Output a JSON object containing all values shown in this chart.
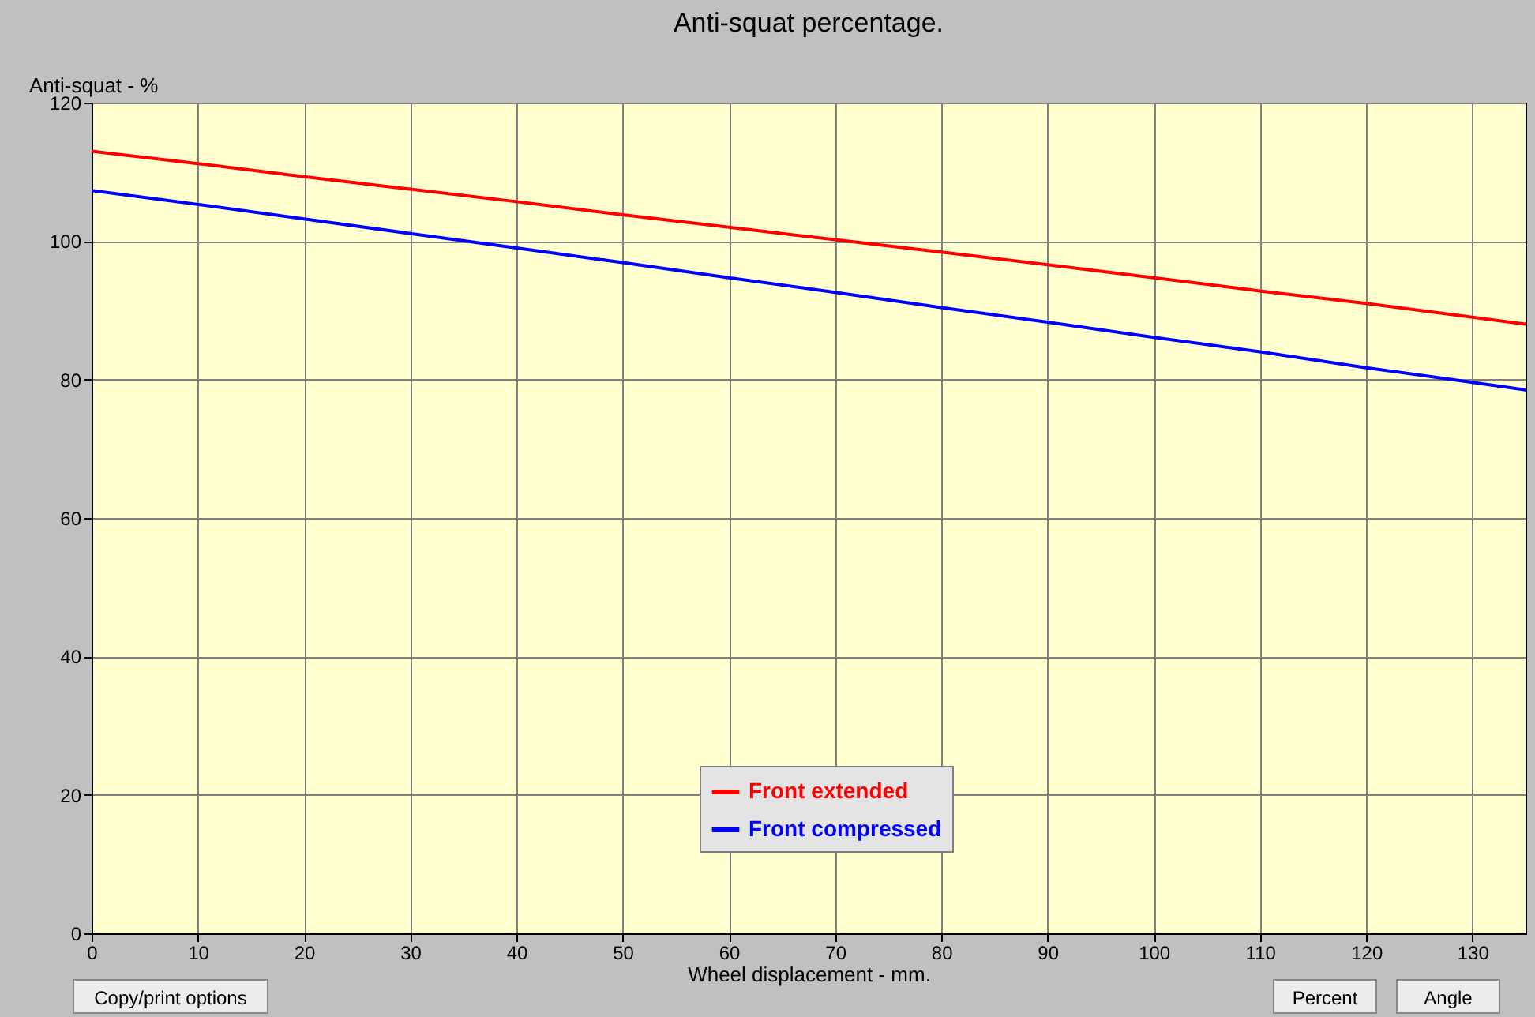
{
  "chart_data": {
    "type": "line",
    "title": "Anti-squat percentage.",
    "xlabel": "Wheel displacement - mm.",
    "ylabel": "Anti-squat - %",
    "x": [
      0,
      10,
      20,
      30,
      40,
      50,
      60,
      70,
      80,
      90,
      100,
      110,
      120,
      130,
      135
    ],
    "series": [
      {
        "name": "Front extended",
        "color": "#ff0000",
        "values": [
          113,
          111.2,
          109.3,
          107.5,
          105.7,
          103.8,
          102,
          100.2,
          98.4,
          96.6,
          94.7,
          92.8,
          91,
          89,
          88
        ]
      },
      {
        "name": "Front compressed",
        "color": "#0000ff",
        "values": [
          107.3,
          105.3,
          103.2,
          101.1,
          99,
          96.9,
          94.7,
          92.6,
          90.4,
          88.3,
          86.1,
          84,
          81.7,
          79.6,
          78.5
        ]
      }
    ],
    "xlim": [
      0,
      135
    ],
    "xticks": [
      0,
      10,
      20,
      30,
      40,
      50,
      60,
      70,
      80,
      90,
      100,
      110,
      120,
      130
    ],
    "ylim": [
      0,
      120
    ],
    "yticks": [
      0,
      20,
      40,
      60,
      80,
      100,
      120
    ],
    "grid": true,
    "legend": "bottom",
    "line_style": "solid",
    "annotations": [
      "Copy/print options",
      "Percent",
      "Angle"
    ]
  }
}
